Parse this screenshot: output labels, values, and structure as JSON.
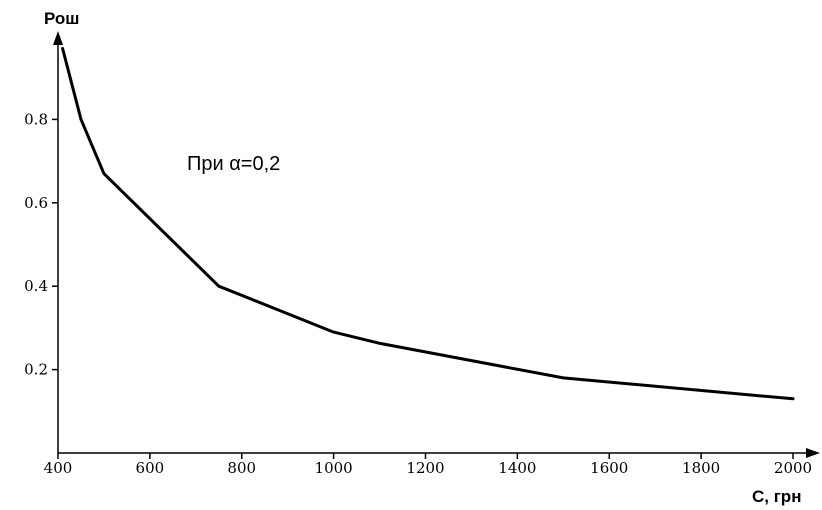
{
  "chart_data": {
    "type": "line",
    "title": "",
    "xlabel": "С, грн",
    "ylabel": "Рош",
    "xlim": [
      400,
      2000
    ],
    "ylim": [
      0,
      1
    ],
    "xticks": [
      400,
      600,
      800,
      1000,
      1200,
      1400,
      1600,
      1800,
      2000
    ],
    "yticks": [
      0.2,
      0.4,
      0.6,
      0.8
    ],
    "grid": false,
    "annotation": "При α=0,2",
    "series": [
      {
        "x": [
          410,
          450,
          500,
          750,
          1000,
          1100,
          1500,
          2000
        ],
        "y": [
          0.97,
          0.8,
          0.67,
          0.4,
          0.29,
          0.263,
          0.18,
          0.13
        ]
      }
    ]
  }
}
